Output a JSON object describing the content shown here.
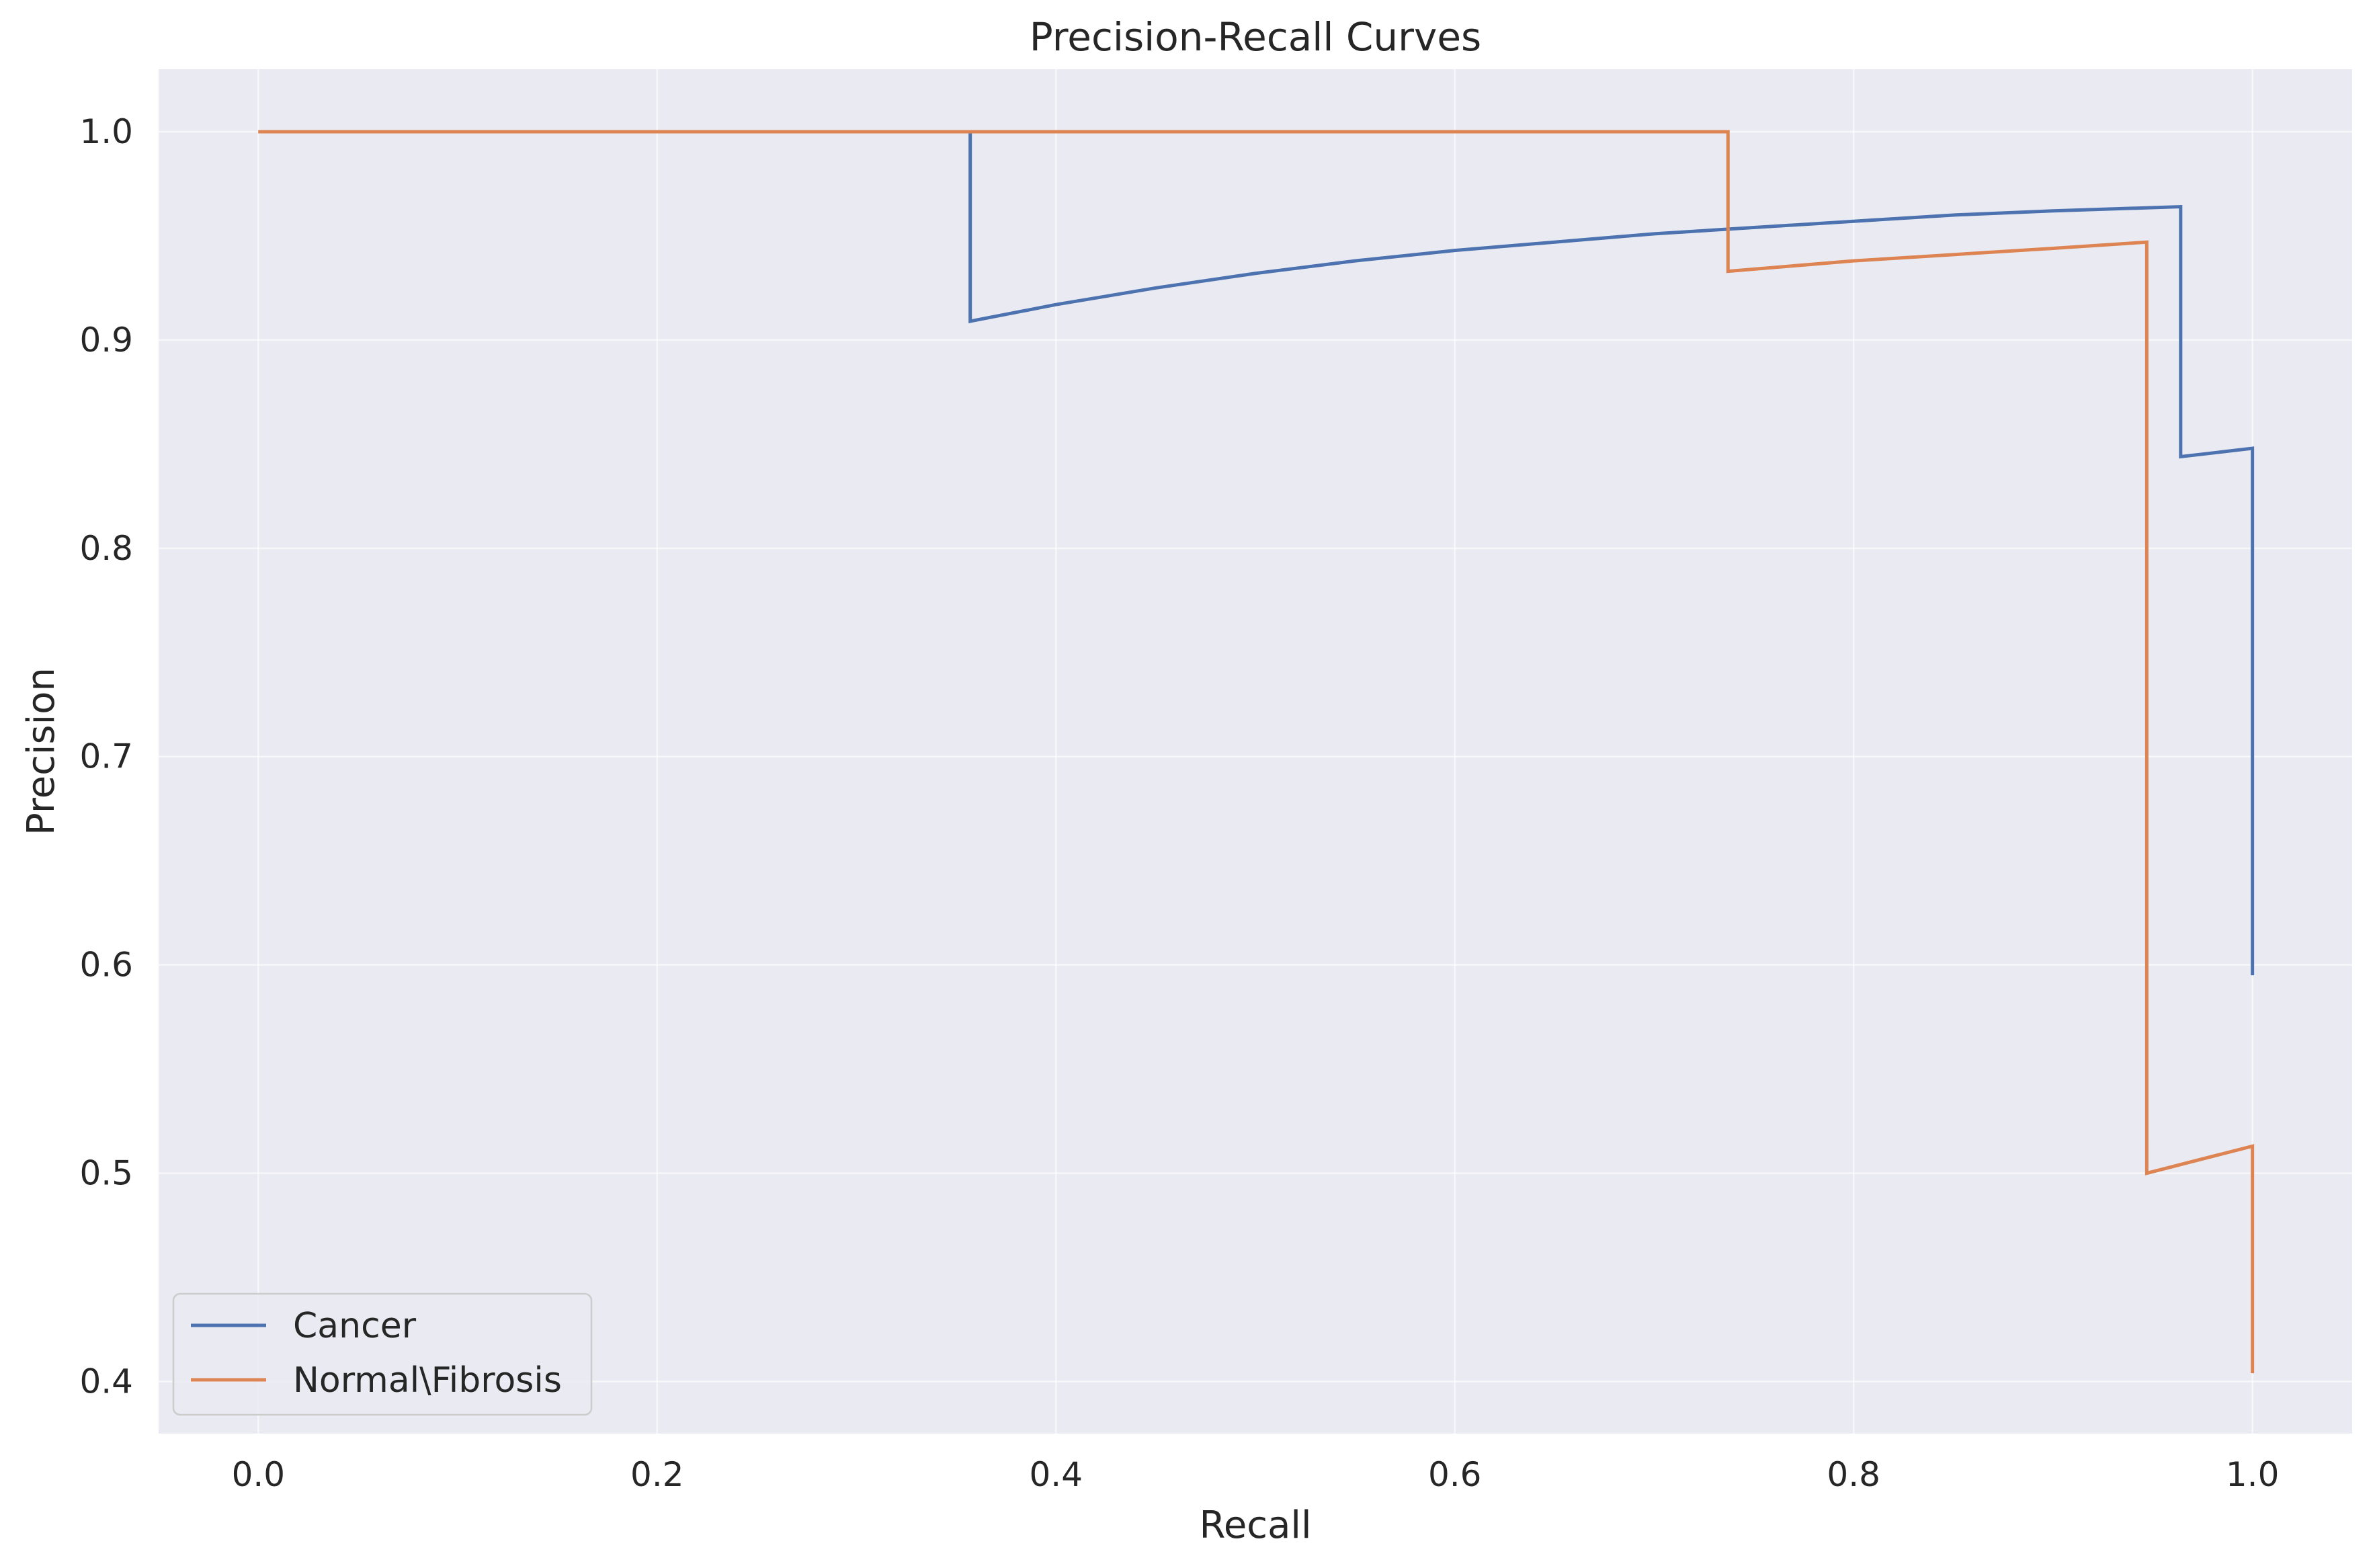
{
  "chart_data": {
    "type": "line",
    "title": "Precision-Recall Curves",
    "xlabel": "Recall",
    "ylabel": "Precision",
    "xlim": [
      -0.05,
      1.05
    ],
    "ylim": [
      0.375,
      1.03
    ],
    "xticks": [
      0.0,
      0.2,
      0.4,
      0.6,
      0.8,
      1.0
    ],
    "xtick_labels": [
      "0.0",
      "0.2",
      "0.4",
      "0.6",
      "0.8",
      "1.0"
    ],
    "yticks": [
      0.4,
      0.5,
      0.6,
      0.7,
      0.8,
      0.9,
      1.0
    ],
    "ytick_labels": [
      "0.4",
      "0.5",
      "0.6",
      "0.7",
      "0.8",
      "0.9",
      "1.0"
    ],
    "grid": true,
    "legend_position": "lower-left",
    "background": "#eaeaf2",
    "grid_color": "#ffffff",
    "series": [
      {
        "name": "Cancer",
        "color": "#4c72b0",
        "points": [
          [
            0.0,
            1.0
          ],
          [
            0.357,
            1.0
          ],
          [
            0.357,
            0.909
          ],
          [
            0.4,
            0.917
          ],
          [
            0.45,
            0.925
          ],
          [
            0.5,
            0.932
          ],
          [
            0.55,
            0.938
          ],
          [
            0.6,
            0.943
          ],
          [
            0.65,
            0.947
          ],
          [
            0.7,
            0.951
          ],
          [
            0.75,
            0.954
          ],
          [
            0.8,
            0.957
          ],
          [
            0.85,
            0.96
          ],
          [
            0.9,
            0.962
          ],
          [
            0.964,
            0.964
          ],
          [
            0.964,
            0.844
          ],
          [
            1.0,
            0.848
          ],
          [
            1.0,
            0.595
          ]
        ]
      },
      {
        "name": "Normal\\Fibrosis",
        "color": "#dd8452",
        "points": [
          [
            0.0,
            1.0
          ],
          [
            0.737,
            1.0
          ],
          [
            0.737,
            0.933
          ],
          [
            0.8,
            0.938
          ],
          [
            0.85,
            0.941
          ],
          [
            0.9,
            0.944
          ],
          [
            0.947,
            0.947
          ],
          [
            0.947,
            0.5
          ],
          [
            1.0,
            0.513
          ],
          [
            1.0,
            0.404
          ]
        ]
      }
    ]
  }
}
